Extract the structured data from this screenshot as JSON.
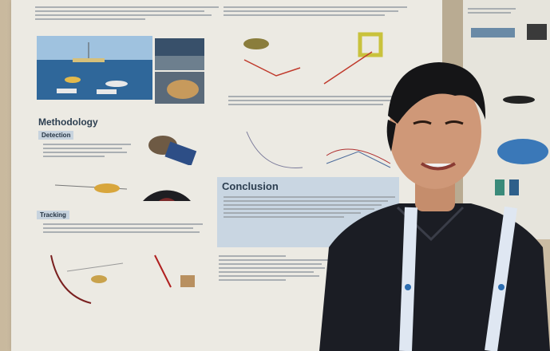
{
  "poster": {
    "methodology_heading": "Methodology",
    "detection_subheading": "Detection",
    "tracking_subheading": "Tracking",
    "conclusion_heading": "Conclusion"
  },
  "colors": {
    "poster_background": "#eceae3",
    "wall": "#cdbfa8",
    "section_box": "#c9d6e2",
    "shirt": "#1b1d24",
    "lanyard": "#dfe7f2"
  }
}
